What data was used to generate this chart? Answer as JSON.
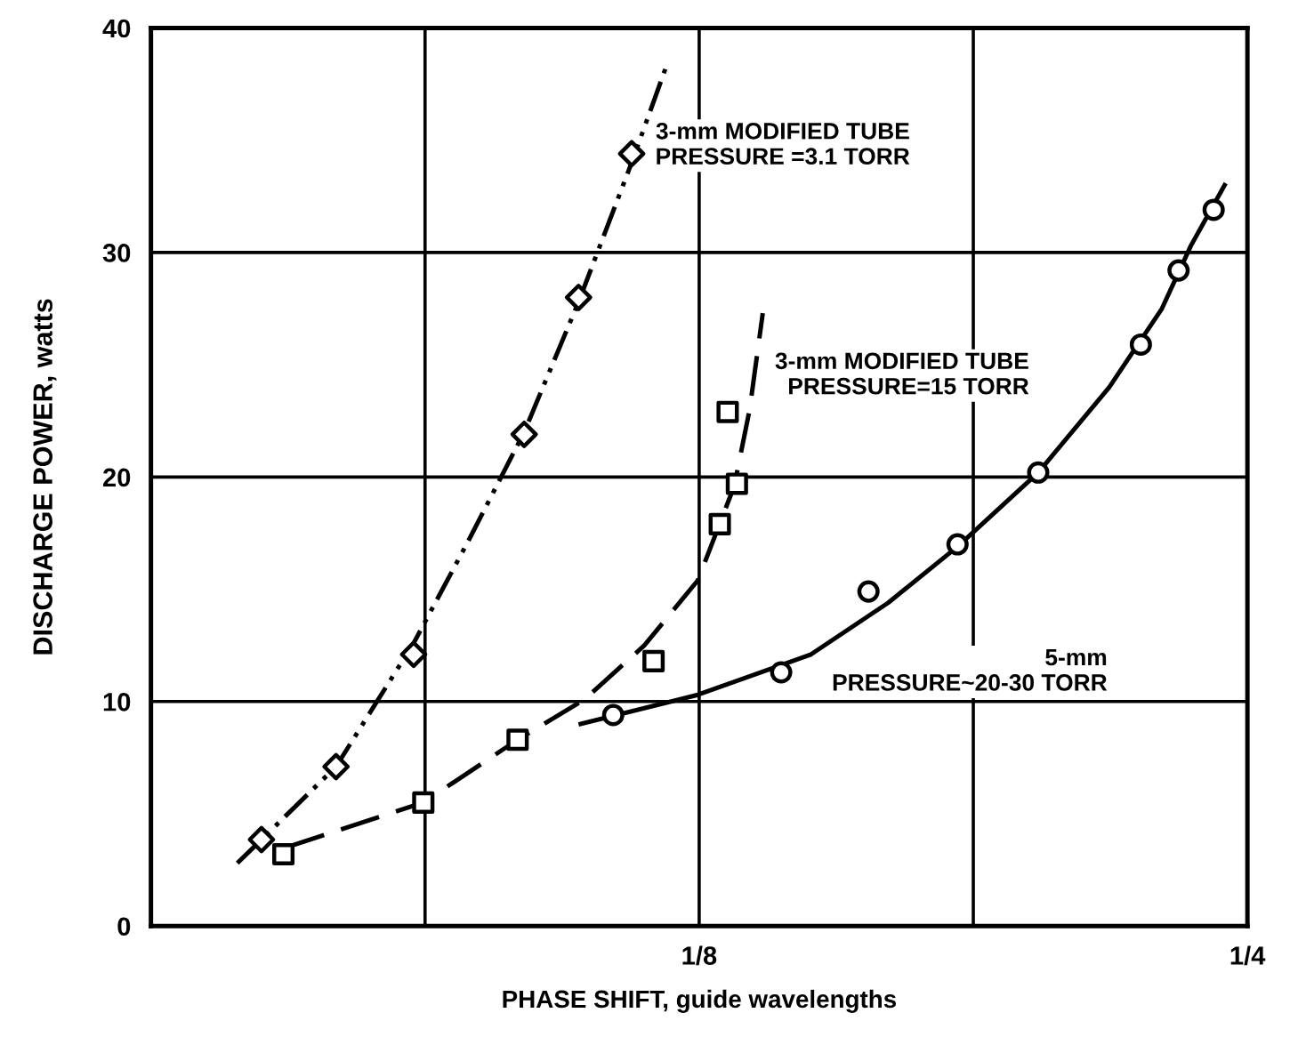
{
  "chart_data": {
    "type": "scatter",
    "xlabel": "PHASE SHIFT, guide wavelengths",
    "ylabel": "DISCHARGE POWER, watts",
    "xlim": [
      0,
      0.25
    ],
    "ylim": [
      0,
      40
    ],
    "xticks": [
      {
        "value": 0,
        "label": null
      },
      {
        "value": 0.0625,
        "label": null
      },
      {
        "value": 0.125,
        "label": "1/8"
      },
      {
        "value": 0.1875,
        "label": null
      },
      {
        "value": 0.25,
        "label": "1/4"
      }
    ],
    "yticks": [
      0,
      10,
      20,
      30,
      40
    ],
    "grid": true,
    "legend": false,
    "series": [
      {
        "color": "#000000",
        "marker": "diamond",
        "x": [
          0.0252,
          0.0422,
          0.0599,
          0.0851,
          0.0975,
          0.1096
        ],
        "values": [
          3.85,
          7.1,
          12.1,
          21.9,
          28.0,
          34.4
        ]
      },
      {
        "type": "line",
        "name": "3-mm MODIFIED TUBE\nPRESSURE =3.1 TORR",
        "color": "#000000",
        "line_style": "dotted",
        "x": [
          0.0197,
          0.0252,
          0.0422,
          0.0599,
          0.0725,
          0.0851,
          0.0975,
          0.1096,
          0.1177
        ],
        "values": [
          2.8,
          3.85,
          7.1,
          12.6,
          17.2,
          22.0,
          27.8,
          34.0,
          38.4
        ]
      },
      {
        "color": "#000000",
        "marker": "square",
        "x": [
          0.0302,
          0.0621,
          0.0836,
          0.1146,
          0.1297,
          0.1315,
          0.1336
        ],
        "values": [
          3.2,
          5.5,
          8.3,
          11.8,
          17.9,
          22.9,
          19.7
        ]
      },
      {
        "type": "line",
        "name": "3-mm MODIFIED TUBE\nPRESSURE=15 TORR",
        "color": "#000000",
        "line_style": "dashed",
        "x": [
          0.0308,
          0.0621,
          0.0836,
          0.0989,
          0.1125,
          0.1247,
          0.133,
          0.1365,
          0.1395
        ],
        "values": [
          3.5,
          5.5,
          8.3,
          10.1,
          12.5,
          15.4,
          19.6,
          23.0,
          27.3
        ]
      },
      {
        "color": "#000000",
        "marker": "circle",
        "x": [
          0.1054,
          0.1437,
          0.1636,
          0.1839,
          0.2023,
          0.2257,
          0.2343,
          0.2423
        ],
        "values": [
          9.4,
          11.3,
          14.9,
          17.0,
          20.2,
          25.9,
          29.2,
          31.9
        ]
      },
      {
        "type": "line",
        "name": "5-mm\nPRESSURE~20-30 TORR",
        "color": "#000000",
        "line_style": "solid",
        "x": [
          0.098,
          0.1247,
          0.1505,
          0.1681,
          0.1839,
          0.2023,
          0.2185,
          0.2305,
          0.2371,
          0.2448
        ],
        "values": [
          9.0,
          10.3,
          12.1,
          14.4,
          16.9,
          20.2,
          24.0,
          27.5,
          30.3,
          33.0
        ]
      }
    ]
  }
}
